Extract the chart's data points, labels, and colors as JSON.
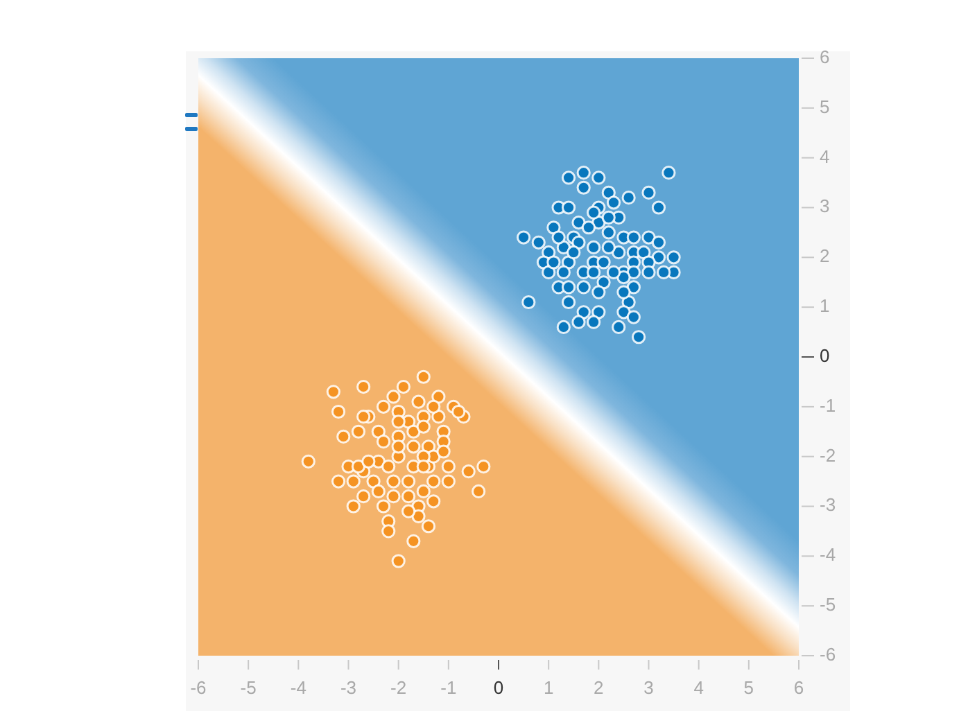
{
  "chart_data": {
    "type": "scatter",
    "marker": "circle",
    "xlim": [
      -6,
      6
    ],
    "ylim": [
      -6,
      6
    ],
    "xticks": [
      -6,
      -5,
      -4,
      -3,
      -2,
      -1,
      0,
      1,
      2,
      3,
      4,
      5,
      6
    ],
    "yticks": [
      -6,
      -5,
      -4,
      -3,
      -2,
      -1,
      0,
      1,
      2,
      3,
      4,
      5,
      6
    ],
    "series": [
      {
        "color": "#0877bd",
        "x": [
          1.4,
          1.7,
          2.0,
          3.4,
          1.7,
          2.2,
          3.0,
          3.2,
          2.6,
          2.3,
          1.2,
          2.0,
          1.4,
          2.4,
          2.0,
          1.6,
          1.1,
          1.8,
          0.5,
          0.8,
          1.5,
          2.2,
          2.5,
          2.7,
          3.0,
          3.2,
          3.5,
          3.5,
          1.0,
          1.3,
          1.6,
          1.9,
          2.4,
          2.7,
          2.9,
          3.2,
          0.9,
          1.4,
          1.9,
          2.1,
          2.7,
          3.0,
          1.0,
          1.3,
          1.7,
          2.5,
          2.7,
          3.0,
          1.2,
          1.4,
          1.7,
          2.1,
          2.5,
          2.7,
          0.6,
          1.4,
          2.0,
          2.6,
          1.7,
          2.0,
          2.5,
          2.7,
          1.3,
          1.6,
          1.9,
          2.4,
          2.8,
          1.5,
          2.2,
          1.2,
          1.9,
          2.2,
          2.5,
          2.3,
          1.9,
          1.1,
          3.3
        ],
        "values": [
          3.6,
          3.7,
          3.6,
          3.7,
          3.4,
          3.3,
          3.3,
          3.0,
          3.2,
          3.1,
          3.0,
          3.0,
          3.0,
          2.8,
          2.7,
          2.7,
          2.6,
          2.6,
          2.4,
          2.3,
          2.4,
          2.5,
          2.4,
          2.4,
          2.4,
          2.3,
          2.0,
          1.7,
          2.1,
          2.2,
          2.3,
          2.2,
          2.1,
          2.1,
          2.1,
          2.0,
          1.9,
          1.9,
          1.9,
          1.9,
          1.9,
          1.9,
          1.7,
          1.7,
          1.7,
          1.7,
          1.7,
          1.7,
          1.4,
          1.4,
          1.4,
          1.5,
          1.6,
          1.4,
          1.1,
          1.1,
          1.3,
          1.1,
          0.9,
          0.9,
          0.9,
          0.8,
          0.6,
          0.7,
          0.7,
          0.6,
          0.4,
          2.1,
          2.2,
          2.4,
          2.9,
          2.8,
          1.3,
          1.7,
          1.7,
          1.9,
          1.7
        ]
      },
      {
        "color": "#f59322",
        "x": [
          -1.5,
          -3.3,
          -2.7,
          -1.9,
          -3.2,
          -2.1,
          -1.2,
          -2.6,
          -2.3,
          -2.0,
          -1.6,
          -0.9,
          -0.7,
          -0.8,
          -1.2,
          -1.5,
          -1.8,
          -2.8,
          -3.1,
          -2.4,
          -2.0,
          -1.7,
          -1.5,
          -1.1,
          -2.3,
          -1.7,
          -1.4,
          -1.1,
          -3.8,
          -3.0,
          -2.7,
          -2.4,
          -2.0,
          -1.7,
          -1.4,
          -1.0,
          -0.6,
          -0.3,
          -3.2,
          -2.9,
          -2.5,
          -2.1,
          -1.8,
          -1.3,
          -1.0,
          -0.4,
          -2.7,
          -2.4,
          -2.1,
          -1.8,
          -1.5,
          -2.9,
          -2.3,
          -1.6,
          -1.3,
          -2.2,
          -2.2,
          -1.6,
          -1.4,
          -1.7,
          -2.0,
          -2.8,
          -2.2,
          -2.6,
          -1.3,
          -2.0,
          -1.1,
          -1.5,
          -1.8,
          -2.7,
          -1.3,
          -2.0,
          -1.5
        ],
        "values": [
          -0.4,
          -0.7,
          -0.6,
          -0.6,
          -1.1,
          -0.8,
          -0.8,
          -1.2,
          -1.0,
          -1.1,
          -0.9,
          -1.0,
          -1.2,
          -1.1,
          -1.2,
          -1.2,
          -1.3,
          -1.5,
          -1.6,
          -1.5,
          -1.6,
          -1.5,
          -1.4,
          -1.5,
          -1.7,
          -1.8,
          -1.8,
          -1.7,
          -2.1,
          -2.2,
          -2.3,
          -2.1,
          -2.0,
          -2.2,
          -2.2,
          -2.2,
          -2.3,
          -2.2,
          -2.5,
          -2.5,
          -2.5,
          -2.5,
          -2.5,
          -2.5,
          -2.5,
          -2.7,
          -2.8,
          -2.7,
          -2.8,
          -2.8,
          -2.7,
          -3.0,
          -3.0,
          -3.0,
          -2.9,
          -3.3,
          -3.5,
          -3.2,
          -3.4,
          -3.7,
          -4.1,
          -2.2,
          -2.2,
          -2.1,
          -2.0,
          -1.3,
          -1.9,
          -2.0,
          -3.1,
          -1.2,
          -1.0,
          -1.8,
          -2.2
        ]
      }
    ]
  }
}
